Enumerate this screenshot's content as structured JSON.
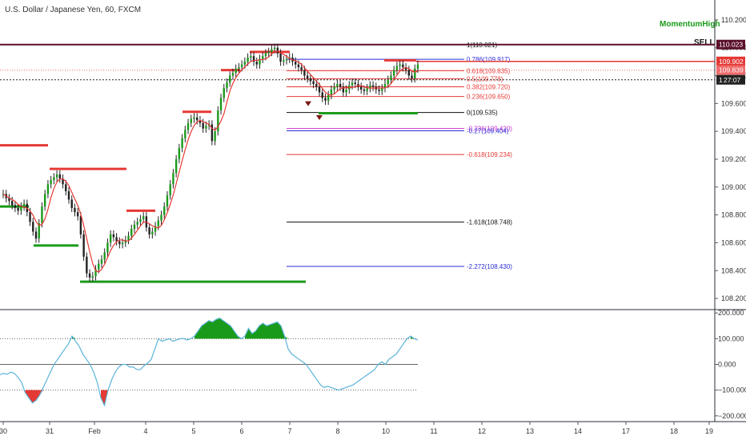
{
  "chart_data": {
    "type": "candlestick",
    "title": "U.S. Dollar / Japanese Yen, 60, FXCM",
    "x_ticks": [
      "30",
      "31",
      "Feb",
      "4",
      "5",
      "6",
      "7",
      "8",
      "10",
      "11",
      "12",
      "13",
      "14",
      "17",
      "18",
      "19"
    ],
    "price_axis": {
      "ylim": [
        108.12,
        110.32
      ],
      "tick_labels": [
        "110.200",
        "110.000",
        "109.800",
        "109.600",
        "109.400",
        "109.200",
        "109.000",
        "108.800",
        "108.600",
        "108.400",
        "108.200"
      ],
      "tick_values": [
        110.2,
        110.0,
        109.8,
        109.6,
        109.4,
        109.2,
        109.0,
        108.8,
        108.6,
        108.4,
        108.2
      ],
      "badges": [
        {
          "text": "110.023",
          "value": 110.023,
          "color": "#5a0f2a"
        },
        {
          "text": "109.902",
          "value": 109.902,
          "color": "#e53935"
        },
        {
          "text": "109.839",
          "value": 109.839,
          "color": "#ef6b6b"
        },
        {
          "text": "1",
          "value": 109.77,
          "color": "#222222",
          "countdown": "27:07"
        }
      ]
    },
    "price_close": [
      108.95,
      108.92,
      108.9,
      108.87,
      108.85,
      108.83,
      108.86,
      108.88,
      108.82,
      108.75,
      108.68,
      108.63,
      108.74,
      108.86,
      108.95,
      109.02,
      109.05,
      109.07,
      109.09,
      109.06,
      109.02,
      108.97,
      108.91,
      108.85,
      108.82,
      108.79,
      108.66,
      108.5,
      108.38,
      108.35,
      108.36,
      108.41,
      108.45,
      108.48,
      108.53,
      108.6,
      108.66,
      108.64,
      108.61,
      108.59,
      108.6,
      108.62,
      108.65,
      108.7,
      108.73,
      108.75,
      108.77,
      108.79,
      108.71,
      108.66,
      108.68,
      108.72,
      108.76,
      108.8,
      108.86,
      108.94,
      109.02,
      109.1,
      109.2,
      109.28,
      109.35,
      109.41,
      109.46,
      109.49,
      109.5,
      109.48,
      109.46,
      109.42,
      109.44,
      109.45,
      109.33,
      109.4,
      109.55,
      109.64,
      109.71,
      109.75,
      109.8,
      109.82,
      109.85,
      109.86,
      109.88,
      109.9,
      109.93,
      109.94,
      109.9,
      109.88,
      109.92,
      109.94,
      109.96,
      109.97,
      109.99,
      110.0,
      109.96,
      109.9,
      109.91,
      109.92,
      109.93,
      109.9,
      109.88,
      109.86,
      109.84,
      109.8,
      109.78,
      109.76,
      109.74,
      109.72,
      109.68,
      109.64,
      109.62,
      109.66,
      109.7,
      109.72,
      109.74,
      109.72,
      109.68,
      109.7,
      109.73,
      109.75,
      109.74,
      109.72,
      109.7,
      109.69,
      109.71,
      109.73,
      109.72,
      109.7,
      109.69,
      109.71,
      109.74,
      109.77,
      109.8,
      109.84,
      109.87,
      109.88,
      109.86,
      109.84,
      109.8,
      109.78,
      109.85,
      109.88
    ],
    "fibonacci": [
      {
        "label": "1(110.021)",
        "value": 110.021,
        "color": "#111111"
      },
      {
        "label": "0.786(109.917)",
        "value": 109.917,
        "color": "#2b2bd8"
      },
      {
        "label": "0.618(109.835)",
        "value": 109.835,
        "color": "#e53935"
      },
      {
        "label": "0.5(109.778)",
        "value": 109.778,
        "color": "#e53935"
      },
      {
        "label": "0.382(109.720)",
        "value": 109.72,
        "color": "#e53935"
      },
      {
        "label": "0.236(109.650)",
        "value": 109.65,
        "color": "#e53935"
      },
      {
        "label": "0(109.535)",
        "value": 109.535,
        "color": "#111111"
      },
      {
        "label": "-0.236(109.420)",
        "value": 109.42,
        "color": "#cc33cc"
      },
      {
        "label": "-0.27(109.404)",
        "value": 109.404,
        "color": "#2b2bd8"
      },
      {
        "label": "-0.618(109.234)",
        "value": 109.234,
        "color": "#e53935"
      },
      {
        "label": "-1.618(108.748)",
        "value": 108.748,
        "color": "#111111"
      },
      {
        "label": "-2.272(108.430)",
        "value": 108.43,
        "color": "#2b2bd8"
      }
    ],
    "annotations": {
      "momentum": {
        "text": "MomentumHigh",
        "color": "#1a9a1a"
      },
      "signal": {
        "text": "SELL",
        "color": "#111111"
      }
    },
    "resistance_levels": [
      {
        "value": 109.84,
        "color": "#e53935"
      },
      {
        "value": 109.3,
        "color": "#e53935"
      }
    ],
    "support_levels": [
      {
        "value": 108.58,
        "color": "#1a9a1a"
      },
      {
        "value": 108.32,
        "color": "#1a9a1a"
      },
      {
        "value": 109.53,
        "color": "#1a9a1a"
      }
    ],
    "oscillator": {
      "ylim": [
        -210,
        210
      ],
      "tick_labels": [
        "200.000",
        "100.000",
        "0.000",
        "−100.000",
        "−200.000"
      ],
      "tick_values": [
        200,
        100,
        0,
        -100,
        -200
      ],
      "levels": [
        100,
        0,
        -100
      ],
      "series": [
        -40,
        -35,
        -38,
        -30,
        -35,
        -50,
        -70,
        -110,
        -130,
        -150,
        -140,
        -120,
        -90,
        -60,
        -30,
        0,
        20,
        40,
        60,
        80,
        110,
        90,
        70,
        40,
        20,
        0,
        -30,
        -70,
        -130,
        -160,
        -100,
        -60,
        -30,
        -10,
        0,
        0,
        -10,
        -10,
        -20,
        -20,
        -5,
        5,
        20,
        60,
        100,
        90,
        95,
        100,
        90,
        95,
        100,
        100,
        95,
        100,
        110,
        130,
        150,
        160,
        170,
        165,
        175,
        180,
        170,
        160,
        150,
        130,
        110,
        100,
        110,
        140,
        120,
        130,
        150,
        160,
        150,
        155,
        160,
        165,
        150,
        110,
        60,
        40,
        30,
        20,
        10,
        0,
        -20,
        -40,
        -60,
        -80,
        -90,
        -85,
        -90,
        -95,
        -100,
        -95,
        -90,
        -85,
        -80,
        -70,
        -60,
        -50,
        -40,
        -30,
        -20,
        0,
        10,
        0,
        20,
        30,
        40,
        60,
        80,
        100,
        110,
        100,
        95
      ]
    }
  }
}
